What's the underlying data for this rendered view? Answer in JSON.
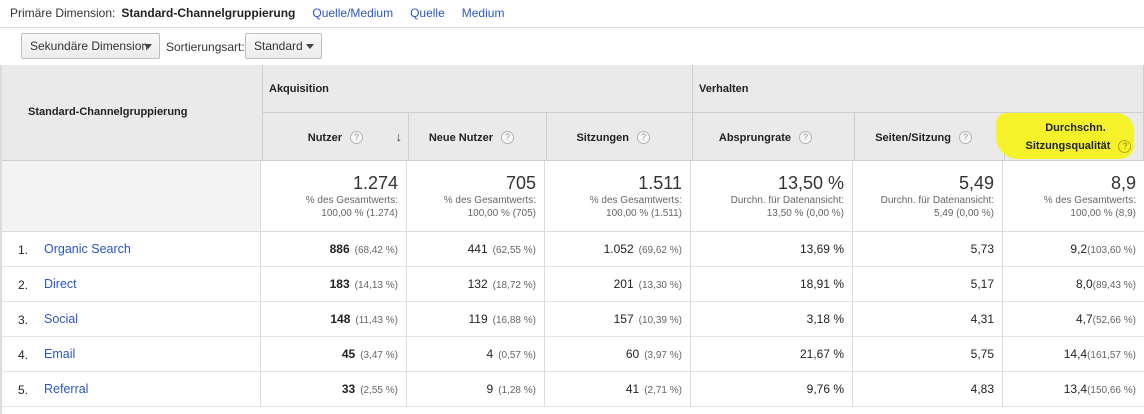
{
  "dimension_bar": {
    "label": "Primäre Dimension:",
    "active": "Standard-Channelgruppierung",
    "links": [
      "Quelle/Medium",
      "Quelle",
      "Medium"
    ]
  },
  "toolbar": {
    "secondary_dimension": "Sekundäre Dimension",
    "sort_label": "Sortierungsart:",
    "sort_value": "Standard"
  },
  "table": {
    "dimension_header": "Standard-Channelgruppierung",
    "group_acquisition": "Akquisition",
    "group_behavior": "Verhalten",
    "columns": [
      {
        "label": "Nutzer"
      },
      {
        "label": "Neue Nutzer"
      },
      {
        "label": "Sitzungen"
      },
      {
        "label": "Absprungrate"
      },
      {
        "label": "Seiten/Sitzung"
      },
      {
        "label_line1": "Durchschn.",
        "label_line2": "Sitzungsqualität"
      }
    ],
    "totals": [
      {
        "value": "1.274",
        "line1": "% des Gesamtwerts:",
        "line2": "100,00 % (1.274)"
      },
      {
        "value": "705",
        "line1": "% des Gesamtwerts:",
        "line2": "100,00 % (705)"
      },
      {
        "value": "1.511",
        "line1": "% des Gesamtwerts:",
        "line2": "100,00 % (1.511)"
      },
      {
        "value": "13,50 %",
        "line1": "Durchn. für Datenansicht:",
        "line2": "13,50 % (0,00 %)"
      },
      {
        "value": "5,49",
        "line1": "Durchn. für Datenansicht:",
        "line2": "5,49 (0,00 %)"
      },
      {
        "value": "8,9",
        "line1": "% des Gesamtwerts:",
        "line2": "100,00 % (8,9)"
      }
    ],
    "rows": [
      {
        "rank": "1.",
        "channel": "Organic Search",
        "users": "886",
        "users_pct": "(68,42 %)",
        "new_users": "441",
        "new_users_pct": "(62,55 %)",
        "sessions": "1.052",
        "sessions_pct": "(69,62 %)",
        "bounce": "13,69 %",
        "pages": "5,73",
        "quality": "9,2",
        "quality_pct": "(103,60 %)"
      },
      {
        "rank": "2.",
        "channel": "Direct",
        "users": "183",
        "users_pct": "(14,13 %)",
        "new_users": "132",
        "new_users_pct": "(18,72 %)",
        "sessions": "201",
        "sessions_pct": "(13,30 %)",
        "bounce": "18,91 %",
        "pages": "5,17",
        "quality": "8,0",
        "quality_pct": "(89,43 %)"
      },
      {
        "rank": "3.",
        "channel": "Social",
        "users": "148",
        "users_pct": "(11,43 %)",
        "new_users": "119",
        "new_users_pct": "(16,88 %)",
        "sessions": "157",
        "sessions_pct": "(10,39 %)",
        "bounce": "3,18 %",
        "pages": "4,31",
        "quality": "4,7",
        "quality_pct": "(52,66 %)"
      },
      {
        "rank": "4.",
        "channel": "Email",
        "users": "45",
        "users_pct": "(3,47 %)",
        "new_users": "4",
        "new_users_pct": "(0,57 %)",
        "sessions": "60",
        "sessions_pct": "(3,97 %)",
        "bounce": "21,67 %",
        "pages": "5,75",
        "quality": "14,4",
        "quality_pct": "(161,57 %)"
      },
      {
        "rank": "5.",
        "channel": "Referral",
        "users": "33",
        "users_pct": "(2,55 %)",
        "new_users": "9",
        "new_users_pct": "(1,28 %)",
        "sessions": "41",
        "sessions_pct": "(2,71 %)",
        "bounce": "9,76 %",
        "pages": "4,83",
        "quality": "13,4",
        "quality_pct": "(150,66 %)"
      }
    ]
  },
  "icons": {
    "help": "question-circle-icon",
    "sort": "arrow-down-icon",
    "dropdown": "caret-down-icon"
  },
  "colors": {
    "link": "#2a56c6",
    "highlight": "#f5f22a",
    "header_bg": "#eaeaea"
  }
}
